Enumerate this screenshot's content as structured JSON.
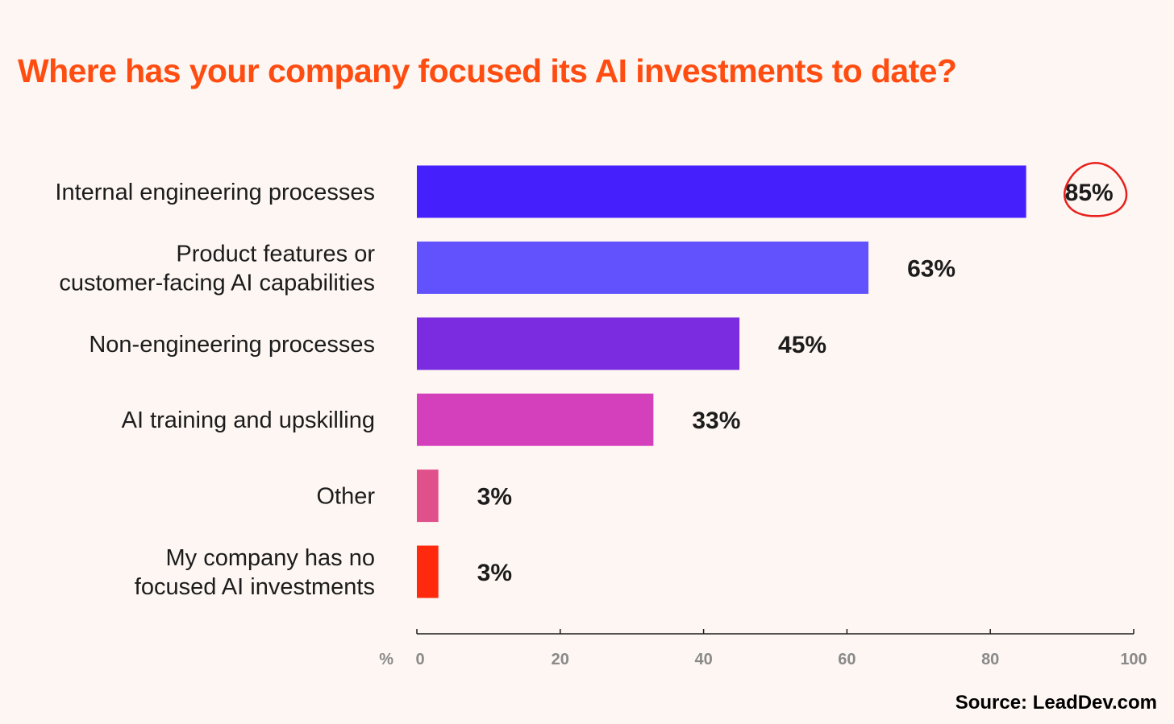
{
  "title": "Where has your company focused its AI investments to date?",
  "source": "Source: LeadDev.com",
  "colors": {
    "title": "#ff4d12",
    "highlight_circle": "#e8201c",
    "axis": "#1c1c1c",
    "tick_label": "#8a8a8a"
  },
  "chart_data": {
    "type": "bar",
    "orientation": "horizontal",
    "title": "Where has your company focused its AI investments to date?",
    "xlabel": "%",
    "ylabel": "",
    "xlim": [
      0,
      100
    ],
    "xticks": [
      0,
      20,
      40,
      60,
      80,
      100
    ],
    "grid": false,
    "categories": [
      [
        "Internal engineering processes"
      ],
      [
        "Product features or",
        "customer-facing AI capabilities"
      ],
      [
        "Non-engineering processes"
      ],
      [
        "AI training and upskilling"
      ],
      [
        "Other"
      ],
      [
        "My company has no",
        "focused AI investments"
      ]
    ],
    "values": [
      85,
      63,
      45,
      33,
      3,
      3
    ],
    "value_labels": [
      "85%",
      "63%",
      "45%",
      "33%",
      "3%",
      "3%"
    ],
    "bar_colors": [
      "#4520fd",
      "#6152fd",
      "#7b2ce0",
      "#d43fbc",
      "#e0508a",
      "#ff2a0e"
    ],
    "annotation": "85% value is circled in red"
  }
}
